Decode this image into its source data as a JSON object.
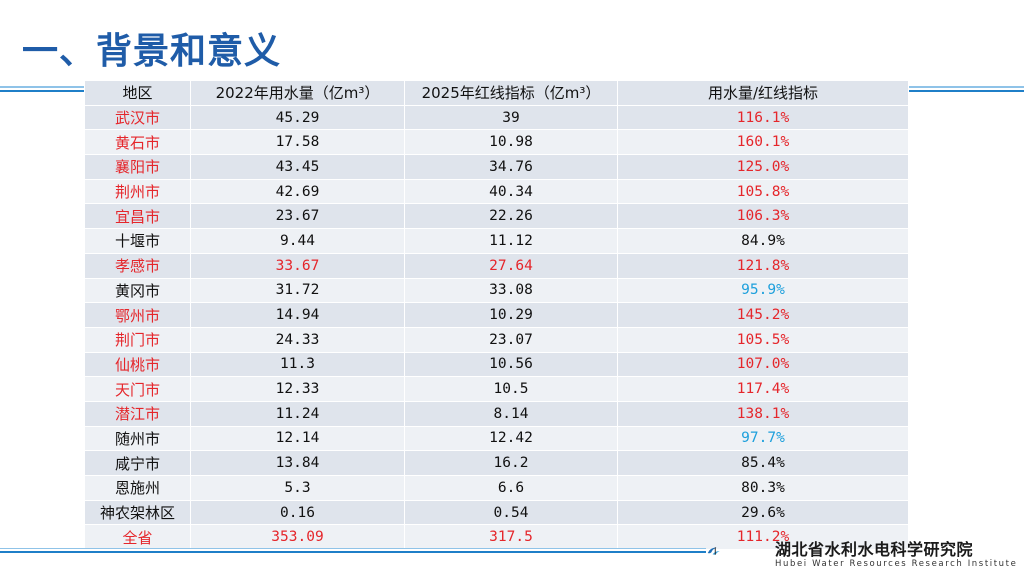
{
  "slide": {
    "title": "一、背景和意义"
  },
  "table": {
    "headers": [
      "地区",
      "2022年用水量（亿m³）",
      "2025年红线指标（亿m³）",
      "用水量/红线指标"
    ],
    "rows": [
      {
        "region": "武汉市",
        "usage": "45.29",
        "limit": "39",
        "ratio": "116.1%",
        "region_color": "red",
        "vals_color": "none",
        "ratio_color": "red"
      },
      {
        "region": "黄石市",
        "usage": "17.58",
        "limit": "10.98",
        "ratio": "160.1%",
        "region_color": "red",
        "vals_color": "none",
        "ratio_color": "red"
      },
      {
        "region": "襄阳市",
        "usage": "43.45",
        "limit": "34.76",
        "ratio": "125.0%",
        "region_color": "red",
        "vals_color": "none",
        "ratio_color": "red"
      },
      {
        "region": "荆州市",
        "usage": "42.69",
        "limit": "40.34",
        "ratio": "105.8%",
        "region_color": "red",
        "vals_color": "none",
        "ratio_color": "red"
      },
      {
        "region": "宜昌市",
        "usage": "23.67",
        "limit": "22.26",
        "ratio": "106.3%",
        "region_color": "red",
        "vals_color": "none",
        "ratio_color": "red"
      },
      {
        "region": "十堰市",
        "usage": "9.44",
        "limit": "11.12",
        "ratio": "84.9%",
        "region_color": "none",
        "vals_color": "none",
        "ratio_color": "none"
      },
      {
        "region": "孝感市",
        "usage": "33.67",
        "limit": "27.64",
        "ratio": "121.8%",
        "region_color": "red",
        "vals_color": "red",
        "ratio_color": "red"
      },
      {
        "region": "黄冈市",
        "usage": "31.72",
        "limit": "33.08",
        "ratio": "95.9%",
        "region_color": "none",
        "vals_color": "none",
        "ratio_color": "blue"
      },
      {
        "region": "鄂州市",
        "usage": "14.94",
        "limit": "10.29",
        "ratio": "145.2%",
        "region_color": "red",
        "vals_color": "none",
        "ratio_color": "red"
      },
      {
        "region": "荆门市",
        "usage": "24.33",
        "limit": "23.07",
        "ratio": "105.5%",
        "region_color": "red",
        "vals_color": "none",
        "ratio_color": "red"
      },
      {
        "region": "仙桃市",
        "usage": "11.3",
        "limit": "10.56",
        "ratio": "107.0%",
        "region_color": "red",
        "vals_color": "none",
        "ratio_color": "red"
      },
      {
        "region": "天门市",
        "usage": "12.33",
        "limit": "10.5",
        "ratio": "117.4%",
        "region_color": "red",
        "vals_color": "none",
        "ratio_color": "red"
      },
      {
        "region": "潜江市",
        "usage": "11.24",
        "limit": "8.14",
        "ratio": "138.1%",
        "region_color": "red",
        "vals_color": "none",
        "ratio_color": "red"
      },
      {
        "region": "随州市",
        "usage": "12.14",
        "limit": "12.42",
        "ratio": "97.7%",
        "region_color": "none",
        "vals_color": "none",
        "ratio_color": "blue"
      },
      {
        "region": "咸宁市",
        "usage": "13.84",
        "limit": "16.2",
        "ratio": "85.4%",
        "region_color": "none",
        "vals_color": "none",
        "ratio_color": "none"
      },
      {
        "region": "恩施州",
        "usage": "5.3",
        "limit": "6.6",
        "ratio": "80.3%",
        "region_color": "none",
        "vals_color": "none",
        "ratio_color": "none"
      },
      {
        "region": "神农架林区",
        "usage": "0.16",
        "limit": "0.54",
        "ratio": "29.6%",
        "region_color": "none",
        "vals_color": "none",
        "ratio_color": "none"
      },
      {
        "region": "全省",
        "usage": "353.09",
        "limit": "317.5",
        "ratio": "111.2%",
        "region_color": "red",
        "vals_color": "red",
        "ratio_color": "red"
      }
    ]
  },
  "logo": {
    "name_cn": "湖北省水利水电科学研究院",
    "name_en": "Hubei Water Resources Research Institute",
    "mark_icon": "hwr-logo-icon"
  },
  "colors": {
    "title": "#1f5ca8",
    "highlight_red": "#e5262b",
    "highlight_blue": "#1ea0dc",
    "row_odd": "#dfe4ec",
    "row_even": "#eef1f5"
  }
}
